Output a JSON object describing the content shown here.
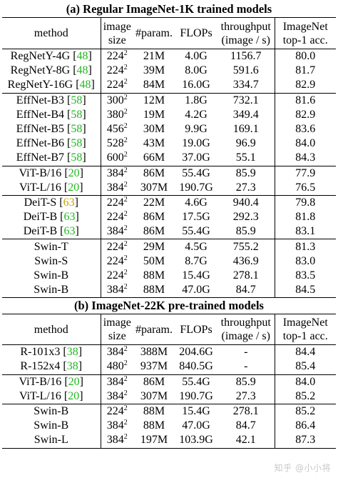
{
  "sectionA": {
    "title": "(a) Regular ImageNet-1K trained models",
    "headers": {
      "method": "method",
      "size_1": "image",
      "size_2": "size",
      "param": "#param.",
      "flops": "FLOPs",
      "thr_1": "throughput",
      "thr_2": "(image / s)",
      "acc_1": "ImageNet",
      "acc_2": "top-1 acc."
    },
    "groups": [
      [
        {
          "name": "RegNetY-4G",
          "ref": "48",
          "size": "224",
          "param": "21M",
          "flops": "4.0G",
          "throughput": "1156.7",
          "acc": "80.0"
        },
        {
          "name": "RegNetY-8G",
          "ref": "48",
          "size": "224",
          "param": "39M",
          "flops": "8.0G",
          "throughput": "591.6",
          "acc": "81.7"
        },
        {
          "name": "RegNetY-16G",
          "ref": "48",
          "size": "224",
          "param": "84M",
          "flops": "16.0G",
          "throughput": "334.7",
          "acc": "82.9"
        }
      ],
      [
        {
          "name": "EffNet-B3",
          "ref": "58",
          "size": "300",
          "param": "12M",
          "flops": "1.8G",
          "throughput": "732.1",
          "acc": "81.6"
        },
        {
          "name": "EffNet-B4",
          "ref": "58",
          "size": "380",
          "param": "19M",
          "flops": "4.2G",
          "throughput": "349.4",
          "acc": "82.9"
        },
        {
          "name": "EffNet-B5",
          "ref": "58",
          "size": "456",
          "param": "30M",
          "flops": "9.9G",
          "throughput": "169.1",
          "acc": "83.6"
        },
        {
          "name": "EffNet-B6",
          "ref": "58",
          "size": "528",
          "param": "43M",
          "flops": "19.0G",
          "throughput": "96.9",
          "acc": "84.0"
        },
        {
          "name": "EffNet-B7",
          "ref": "58",
          "size": "600",
          "param": "66M",
          "flops": "37.0G",
          "throughput": "55.1",
          "acc": "84.3"
        }
      ],
      [
        {
          "name": "ViT-B/16",
          "ref": "20",
          "size": "384",
          "param": "86M",
          "flops": "55.4G",
          "throughput": "85.9",
          "acc": "77.9"
        },
        {
          "name": "ViT-L/16",
          "ref": "20",
          "size": "384",
          "param": "307M",
          "flops": "190.7G",
          "throughput": "27.3",
          "acc": "76.5"
        }
      ],
      [
        {
          "name": "DeiT-S",
          "ref": "63",
          "refColor": "yellow",
          "size": "224",
          "param": "22M",
          "flops": "4.6G",
          "throughput": "940.4",
          "acc": "79.8"
        },
        {
          "name": "DeiT-B",
          "ref": "63",
          "size": "224",
          "param": "86M",
          "flops": "17.5G",
          "throughput": "292.3",
          "acc": "81.8"
        },
        {
          "name": "DeiT-B",
          "ref": "63",
          "size": "384",
          "param": "86M",
          "flops": "55.4G",
          "throughput": "85.9",
          "acc": "83.1"
        }
      ],
      [
        {
          "name": "Swin-T",
          "size": "224",
          "param": "29M",
          "flops": "4.5G",
          "throughput": "755.2",
          "acc": "81.3"
        },
        {
          "name": "Swin-S",
          "size": "224",
          "param": "50M",
          "flops": "8.7G",
          "throughput": "436.9",
          "acc": "83.0"
        },
        {
          "name": "Swin-B",
          "size": "224",
          "param": "88M",
          "flops": "15.4G",
          "throughput": "278.1",
          "acc": "83.5"
        },
        {
          "name": "Swin-B",
          "size": "384",
          "param": "88M",
          "flops": "47.0G",
          "throughput": "84.7",
          "acc": "84.5"
        }
      ]
    ]
  },
  "sectionB": {
    "title": "(b) ImageNet-22K pre-trained models",
    "headers": {
      "method": "method",
      "size_1": "image",
      "size_2": "size",
      "param": "#param.",
      "flops": "FLOPs",
      "thr_1": "throughput",
      "thr_2": "(image / s)",
      "acc_1": "ImageNet",
      "acc_2": "top-1 acc."
    },
    "groups": [
      [
        {
          "name": "R-101x3",
          "ref": "38",
          "size": "384",
          "param": "388M",
          "flops": "204.6G",
          "throughput": "-",
          "acc": "84.4"
        },
        {
          "name": "R-152x4",
          "ref": "38",
          "size": "480",
          "param": "937M",
          "flops": "840.5G",
          "throughput": "-",
          "acc": "85.4"
        }
      ],
      [
        {
          "name": "ViT-B/16",
          "ref": "20",
          "size": "384",
          "param": "86M",
          "flops": "55.4G",
          "throughput": "85.9",
          "acc": "84.0"
        },
        {
          "name": "ViT-L/16",
          "ref": "20",
          "size": "384",
          "param": "307M",
          "flops": "190.7G",
          "throughput": "27.3",
          "acc": "85.2"
        }
      ],
      [
        {
          "name": "Swin-B",
          "size": "224",
          "param": "88M",
          "flops": "15.4G",
          "throughput": "278.1",
          "acc": "85.2"
        },
        {
          "name": "Swin-B",
          "size": "384",
          "param": "88M",
          "flops": "47.0G",
          "throughput": "84.7",
          "acc": "86.4"
        },
        {
          "name": "Swin-L",
          "size": "384",
          "param": "197M",
          "flops": "103.9G",
          "throughput": "42.1",
          "acc": "87.3"
        }
      ]
    ]
  },
  "size_exponent": "2",
  "watermark": "知乎 @小小将"
}
